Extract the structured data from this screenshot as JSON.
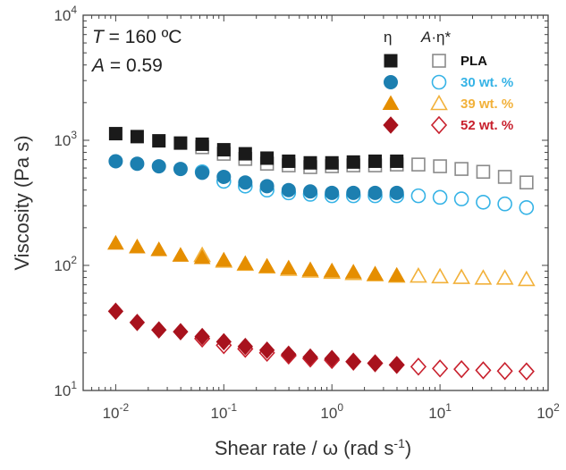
{
  "chart_data": {
    "type": "scatter",
    "xlabel": "Shear rate / ω (rad s",
    "xlabel_sup": "-1",
    "xlabel_end": ")",
    "ylabel": "Viscosity (Pa s)",
    "xscale": "log",
    "yscale": "log",
    "xlim": [
      0.005,
      100
    ],
    "ylim": [
      10,
      10000
    ],
    "x_ticks": [
      0.01,
      0.1,
      1,
      10,
      100
    ],
    "x_tick_labels": [
      {
        "base": "10",
        "exp": "-2"
      },
      {
        "base": "10",
        "exp": "-1"
      },
      {
        "base": "10",
        "exp": "0"
      },
      {
        "base": "10",
        "exp": "1"
      },
      {
        "base": "10",
        "exp": "2"
      }
    ],
    "y_ticks": [
      10,
      100,
      1000,
      10000
    ],
    "y_tick_labels": [
      {
        "base": "10",
        "exp": "1"
      },
      {
        "base": "10",
        "exp": "2"
      },
      {
        "base": "10",
        "exp": "3"
      },
      {
        "base": "10",
        "exp": "4"
      }
    ],
    "grid": false,
    "annotations": {
      "temperature_var": "T",
      "temperature_rest": " = 160 ºC",
      "a_var": "A",
      "a_rest": " = 0.59"
    },
    "legend": {
      "placement": "top-right",
      "col1_header": "η",
      "col2_header_var": "A",
      "col2_header_rest": "·η*"
    },
    "series": [
      {
        "name": "PLA",
        "kind": "steady",
        "marker": "square",
        "color": "#1a1a1a",
        "filled": true,
        "x": [
          0.01,
          0.0158,
          0.0251,
          0.0398,
          0.0631,
          0.1,
          0.158,
          0.251,
          0.398,
          0.631,
          1.0,
          1.58,
          2.51,
          3.98
        ],
        "y": [
          1130,
          1070,
          990,
          950,
          930,
          840,
          780,
          720,
          680,
          660,
          660,
          670,
          680,
          680
        ]
      },
      {
        "name": "PLA",
        "kind": "dynamic",
        "marker": "square",
        "color": "#8a8a8a",
        "filled": false,
        "x": [
          0.0631,
          0.1,
          0.158,
          0.251,
          0.398,
          0.631,
          1.0,
          1.58,
          2.51,
          3.98,
          6.31,
          10,
          15.8,
          25.1,
          39.8,
          63.1
        ],
        "y": [
          880,
          780,
          710,
          650,
          630,
          610,
          620,
          630,
          630,
          640,
          640,
          620,
          590,
          560,
          510,
          460
        ]
      },
      {
        "name": "30 wt. %",
        "kind": "steady",
        "marker": "circle",
        "color": "#1c7fb0",
        "filled": true,
        "x": [
          0.01,
          0.0158,
          0.0251,
          0.0398,
          0.0631,
          0.1,
          0.158,
          0.251,
          0.398,
          0.631,
          1.0,
          1.58,
          2.51,
          3.98
        ],
        "y": [
          680,
          650,
          620,
          590,
          550,
          510,
          460,
          430,
          400,
          390,
          380,
          380,
          380,
          380
        ]
      },
      {
        "name": "30 wt. %",
        "kind": "dynamic",
        "marker": "circle",
        "color": "#36b3e6",
        "filled": false,
        "x": [
          0.0631,
          0.1,
          0.158,
          0.251,
          0.398,
          0.631,
          1.0,
          1.58,
          2.51,
          3.98,
          6.31,
          10,
          15.8,
          25.1,
          39.8,
          63.1
        ],
        "y": [
          560,
          470,
          430,
          400,
          380,
          370,
          360,
          360,
          360,
          360,
          360,
          350,
          340,
          320,
          310,
          290
        ]
      },
      {
        "name": "39 wt. %",
        "kind": "steady",
        "marker": "triangle",
        "color": "#e58e00",
        "filled": true,
        "x": [
          0.01,
          0.0158,
          0.0251,
          0.0398,
          0.0631,
          0.1,
          0.158,
          0.251,
          0.398,
          0.631,
          1.0,
          1.58,
          2.51,
          3.98
        ],
        "y": [
          150,
          140,
          133,
          120,
          115,
          110,
          103,
          98,
          95,
          92,
          90,
          88,
          85,
          83
        ]
      },
      {
        "name": "39 wt. %",
        "kind": "dynamic",
        "marker": "triangle",
        "color": "#f2b13a",
        "filled": false,
        "x": [
          0.0631,
          0.1,
          0.158,
          0.251,
          0.398,
          0.631,
          1.0,
          1.58,
          2.51,
          3.98,
          6.31,
          10,
          15.8,
          25.1,
          39.8,
          63.1
        ],
        "y": [
          120,
          108,
          102,
          97,
          93,
          90,
          88,
          86,
          84,
          82,
          82,
          81,
          80,
          79,
          79,
          77
        ]
      },
      {
        "name": "52 wt. %",
        "kind": "steady",
        "marker": "diamond",
        "color": "#a8121d",
        "filled": true,
        "x": [
          0.01,
          0.0158,
          0.0251,
          0.0398,
          0.0631,
          0.1,
          0.158,
          0.251,
          0.398,
          0.631,
          1.0,
          1.58,
          2.51,
          3.98
        ],
        "y": [
          43,
          35,
          30.5,
          29.5,
          27,
          24.5,
          22.5,
          21,
          19.5,
          18.5,
          18,
          17,
          16.5,
          16
        ]
      },
      {
        "name": "52 wt. %",
        "kind": "dynamic",
        "marker": "diamond",
        "color": "#c8202d",
        "filled": false,
        "x": [
          0.0631,
          0.1,
          0.158,
          0.251,
          0.398,
          0.631,
          1.0,
          1.58,
          2.51,
          3.98,
          6.31,
          10,
          15.8,
          25.1,
          39.8,
          63.1
        ],
        "y": [
          26,
          23,
          21.5,
          20,
          19,
          18,
          17.5,
          17,
          16.5,
          16,
          15.5,
          15,
          14.8,
          14.5,
          14.3,
          14.2
        ]
      }
    ]
  }
}
